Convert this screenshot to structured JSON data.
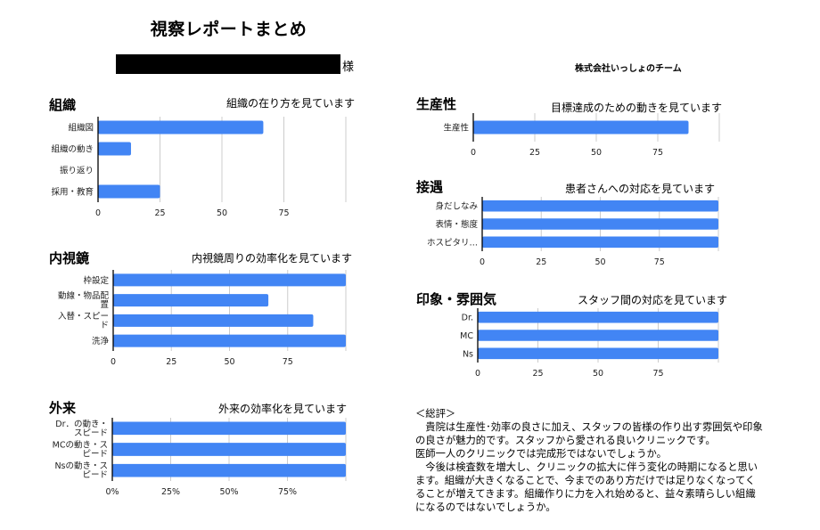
{
  "header": {
    "title": "視察レポートまとめ",
    "recipient_honorific": "様",
    "company": "株式会社いっしょのチーム"
  },
  "colors": {
    "bar": "#4285f4",
    "grid": "#cccccc",
    "axis": "#000000"
  },
  "chart_data": [
    {
      "id": "organization",
      "type": "bar",
      "orientation": "horizontal",
      "title": "組織",
      "subtitle": "組織の在り方を見ています",
      "categories": [
        [
          "組織図"
        ],
        [
          "組織の動き"
        ],
        [
          "振り返り"
        ],
        [
          "採用・教育"
        ]
      ],
      "values": [
        66.7,
        13.3,
        0,
        25
      ],
      "xlim": [
        0,
        100
      ],
      "xticks": [
        "0",
        "25",
        "50",
        "75"
      ],
      "grid": true,
      "legend": "none"
    },
    {
      "id": "endoscope",
      "type": "bar",
      "orientation": "horizontal",
      "title": "内視鏡",
      "subtitle": "内視鏡周りの効率化を見ています",
      "categories": [
        [
          "枠設定"
        ],
        [
          "動線・物品配",
          "置"
        ],
        [
          "入替・スピー",
          "ド"
        ],
        [
          "洗浄"
        ]
      ],
      "values": [
        100,
        66.7,
        86,
        100
      ],
      "xlim": [
        0,
        100
      ],
      "xticks": [
        "0",
        "25",
        "50",
        "75"
      ],
      "grid": true,
      "legend": "none"
    },
    {
      "id": "outpatient",
      "type": "bar",
      "orientation": "horizontal",
      "title": "外来",
      "subtitle": "外来の効率化を見ています",
      "categories": [
        [
          "Dr．の動き・",
          "スピード"
        ],
        [
          "MCの動き・ス",
          "ピード"
        ],
        [
          "Nsの動き・ス",
          "ピード"
        ]
      ],
      "values": [
        100,
        100,
        100
      ],
      "xlim": [
        0,
        100
      ],
      "xticks": [
        "0%",
        "25%",
        "50%",
        "75%"
      ],
      "grid": true,
      "legend": "none"
    },
    {
      "id": "productivity",
      "type": "bar",
      "orientation": "horizontal",
      "title": "生産性",
      "subtitle": "目標達成のための動きを見ています",
      "categories": [
        [
          "生産性"
        ]
      ],
      "values": [
        87.5
      ],
      "xlim": [
        0,
        100
      ],
      "xticks": [
        "0",
        "25",
        "50",
        "75"
      ],
      "grid": true,
      "legend": "none"
    },
    {
      "id": "hospitality",
      "type": "bar",
      "orientation": "horizontal",
      "title": "接遇",
      "subtitle": "患者さんへの対応を見ています",
      "categories": [
        [
          "身だしなみ"
        ],
        [
          "表情・態度"
        ],
        [
          "ホスピタリ…"
        ]
      ],
      "values": [
        100,
        100,
        100
      ],
      "xlim": [
        0,
        100
      ],
      "xticks": [
        "0",
        "25",
        "50",
        "75"
      ],
      "grid": true,
      "legend": "none"
    },
    {
      "id": "atmosphere",
      "type": "bar",
      "orientation": "horizontal",
      "title": "印象・雰囲気",
      "subtitle": "スタッフ間の対応を見ています",
      "categories": [
        [
          "Dr."
        ],
        [
          "MC"
        ],
        [
          "Ns"
        ]
      ],
      "values": [
        100,
        100,
        100
      ],
      "xlim": [
        0,
        100
      ],
      "xticks": [
        "0",
        "25",
        "50",
        "75"
      ],
      "grid": true,
      "legend": "none"
    }
  ],
  "summary": {
    "heading": "＜総評＞",
    "paragraphs": [
      "　貴院は生産性･効率の良さに加え、スタッフの皆様の作り出す雰囲気や印象の良さが魅力的です。スタッフから愛される良いクリニックです。",
      "医師一人のクリニックでは完成形ではないでしょうか。",
      "　今後は検査数を増大し、クリニックの拡大に伴う変化の時期になると思います。組織が大きくなることで、今までのあり方だけでは足りなくなってくることが増えてきます。組織作りに力を入れ始めると、益々素晴らしい組織になるのではないでしょうか。"
    ]
  }
}
